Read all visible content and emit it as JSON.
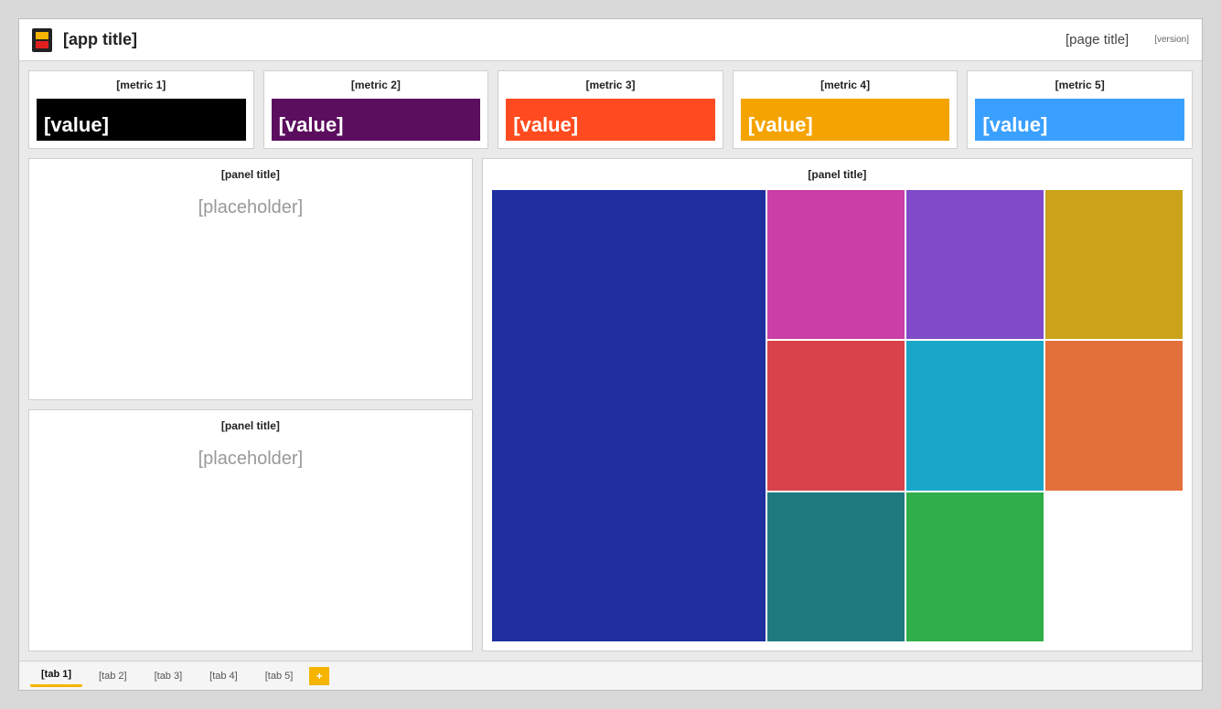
{
  "header": {
    "app_title": "[app title]",
    "page_title": "[page title]",
    "version": "[version]"
  },
  "cards": [
    {
      "label": "[metric 1]",
      "value": "[value]",
      "color": "#000000"
    },
    {
      "label": "[metric 2]",
      "value": "[value]",
      "color": "#5b0d5e"
    },
    {
      "label": "[metric 3]",
      "value": "[value]",
      "color": "#ff4b1f"
    },
    {
      "label": "[metric 4]",
      "value": "[value]",
      "color": "#f5a300"
    },
    {
      "label": "[metric 5]",
      "value": "[value]",
      "color": "#3aa0ff"
    }
  ],
  "panels": {
    "left_top_title": "[panel title]",
    "left_top_text": "[placeholder]",
    "left_bottom_title": "[panel title]",
    "left_bottom_text": "[placeholder]",
    "right_title": "[panel title]"
  },
  "treemap_colors": [
    "#1f2fa0",
    "#c93fa6",
    "#7f4bc9",
    "#caa31a",
    "#d9424b",
    "#1aa6c9",
    "#e36f3b",
    "#1f7a80",
    "#2fae4a"
  ],
  "tabs": [
    "[tab 1]",
    "[tab 2]",
    "[tab 3]",
    "[tab 4]",
    "[tab 5]"
  ]
}
